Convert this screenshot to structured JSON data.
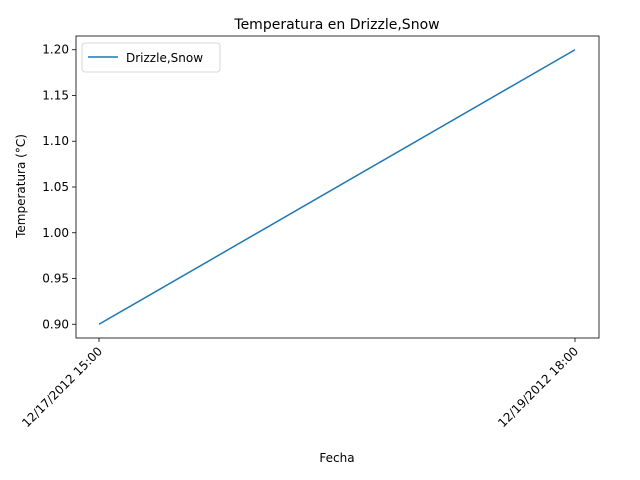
{
  "chart_data": {
    "type": "line",
    "title": "Temperatura en Drizzle,Snow",
    "xlabel": "Fecha",
    "ylabel": "Temperatura (°C)",
    "x": [
      "12/17/2012 15:00",
      "12/19/2012 18:00"
    ],
    "series": [
      {
        "name": "Drizzle,Snow",
        "values": [
          0.9,
          1.2
        ],
        "color": "#1f77b4"
      }
    ],
    "ylim": [
      0.885,
      1.215
    ],
    "yticks": [
      0.9,
      0.95,
      1.0,
      1.05,
      1.1,
      1.15,
      1.2
    ],
    "ytick_labels": [
      "0.90",
      "0.95",
      "1.00",
      "1.05",
      "1.10",
      "1.15",
      "1.20"
    ],
    "xtick_rotation": 45,
    "legend_position": "upper-left",
    "grid": false
  }
}
